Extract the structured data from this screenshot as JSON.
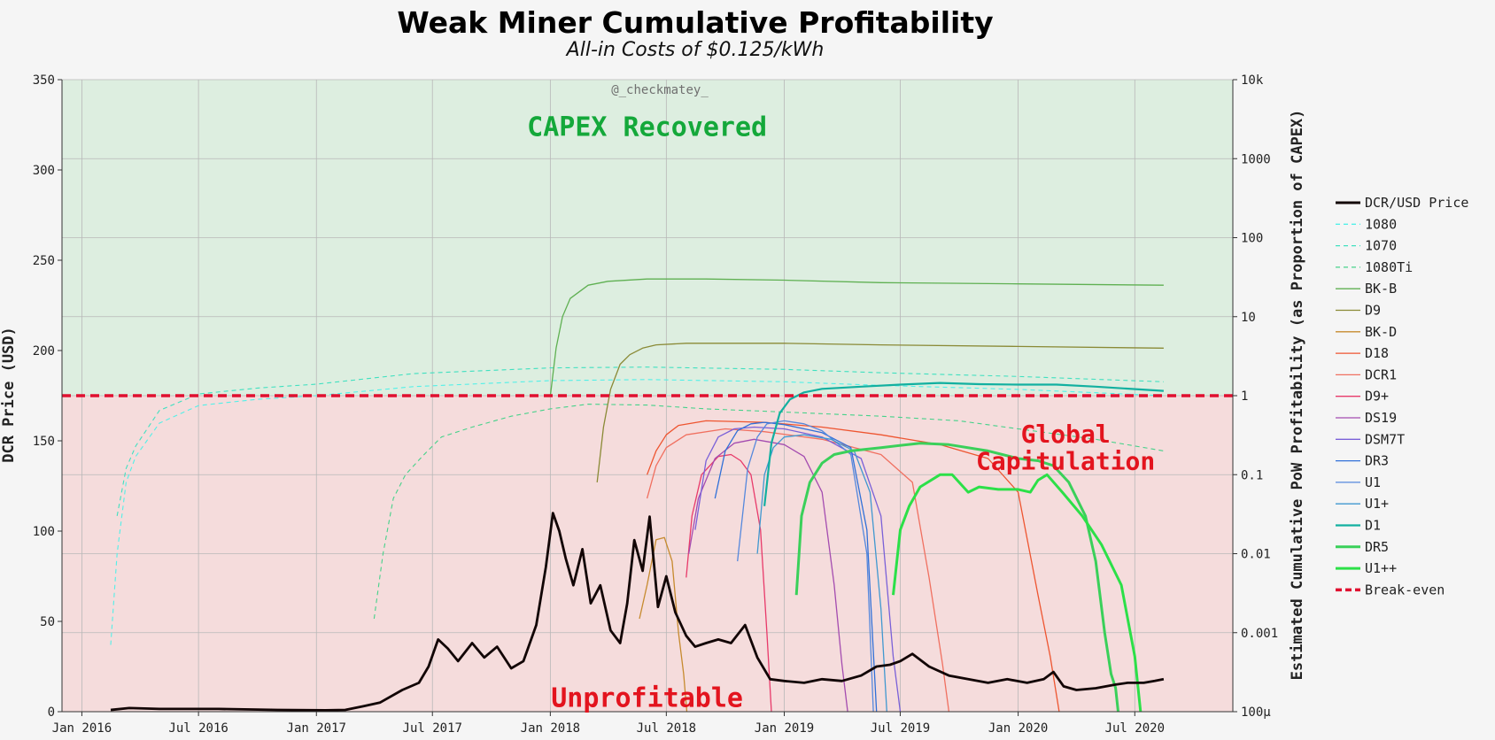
{
  "chart_data": {
    "type": "line",
    "title": "Weak Miner Cumulative Profitability",
    "subtitle": "All-in Costs of $0.125/kWh",
    "watermark": "@_checkmatey_",
    "ylabel": "DCR Price (USD)",
    "y2label": "Estimated Cumulative PoW Profitability (as Proportion of CAPEX)",
    "xlim": [
      "2015-12-01",
      "2020-12-01"
    ],
    "ylim": [
      0,
      350
    ],
    "y2lim": [
      0.0001,
      10000
    ],
    "y2scale": "log",
    "grid": true,
    "legend_position": "right",
    "x_ticks": [
      "2016-01-01",
      "2016-07-01",
      "2017-01-01",
      "2017-07-01",
      "2018-01-01",
      "2018-07-01",
      "2019-01-01",
      "2019-07-01",
      "2020-01-01",
      "2020-07-01"
    ],
    "x_tick_labels": [
      "Jan 2016",
      "Jul 2016",
      "Jan 2017",
      "Jul 2017",
      "Jan 2018",
      "Jul 2018",
      "Jan 2019",
      "Jul 2019",
      "Jan 2020",
      "Jul 2020"
    ],
    "y_ticks": [
      0,
      50,
      100,
      150,
      200,
      250,
      300,
      350
    ],
    "y_tick_labels": [
      "0",
      "50",
      "100",
      "150",
      "200",
      "250",
      "300",
      "350"
    ],
    "y2_ticks": [
      0.0001,
      0.001,
      0.01,
      0.1,
      1,
      10,
      100,
      1000,
      10000
    ],
    "y2_tick_labels": [
      "100μ",
      "0.001",
      "0.01",
      "0.1",
      "1",
      "10",
      "100",
      "1000",
      "10k"
    ],
    "regions": [
      {
        "label": "CAPEX Recovered",
        "y2_from": 1,
        "y2_to": 10000,
        "fill": "#ddeee0",
        "label_color": "#14a83a",
        "label_at": [
          "2018-06-01",
          2500
        ]
      },
      {
        "label": "Unprofitable",
        "y2_from": 0.0001,
        "y2_to": 1,
        "fill": "#f5dcdc",
        "label_color": "#e3141e",
        "label_at": [
          "2018-06-01",
          0.00015
        ]
      }
    ],
    "annotations": [
      {
        "text": "Global",
        "at": [
          "2020-03-15",
          0.33
        ],
        "color": "#e3141e"
      },
      {
        "text": "Capitulation",
        "at": [
          "2020-03-15",
          0.15
        ],
        "color": "#e3141e"
      }
    ],
    "price_series": {
      "name": "DCR/USD Price",
      "color": "#120505",
      "axis": "left",
      "x": [
        "2016-02-15",
        "2016-03-15",
        "2016-05-01",
        "2016-08-01",
        "2016-11-01",
        "2017-01-15",
        "2017-02-15",
        "2017-03-15",
        "2017-04-10",
        "2017-05-15",
        "2017-06-10",
        "2017-06-25",
        "2017-07-10",
        "2017-07-25",
        "2017-08-10",
        "2017-09-01",
        "2017-09-20",
        "2017-10-10",
        "2017-11-01",
        "2017-11-20",
        "2017-12-10",
        "2017-12-25",
        "2018-01-05",
        "2018-01-15",
        "2018-01-25",
        "2018-02-06",
        "2018-02-20",
        "2018-03-05",
        "2018-03-20",
        "2018-04-05",
        "2018-04-20",
        "2018-05-01",
        "2018-05-12",
        "2018-05-25",
        "2018-06-05",
        "2018-06-18",
        "2018-07-01",
        "2018-07-15",
        "2018-08-01",
        "2018-08-15",
        "2018-09-01",
        "2018-09-20",
        "2018-10-10",
        "2018-11-01",
        "2018-11-20",
        "2018-12-10",
        "2019-01-01",
        "2019-02-01",
        "2019-03-01",
        "2019-04-01",
        "2019-05-01",
        "2019-05-25",
        "2019-06-15",
        "2019-07-01",
        "2019-07-20",
        "2019-08-15",
        "2019-09-15",
        "2019-10-15",
        "2019-11-15",
        "2019-12-15",
        "2020-01-15",
        "2020-02-10",
        "2020-02-25",
        "2020-03-12",
        "2020-04-01",
        "2020-05-01",
        "2020-06-01",
        "2020-06-20",
        "2020-07-15",
        "2020-08-01",
        "2020-08-15"
      ],
      "values": [
        1,
        2,
        1.5,
        1.5,
        1,
        0.8,
        1,
        3,
        5,
        12,
        16,
        25,
        40,
        35,
        28,
        38,
        30,
        36,
        24,
        28,
        48,
        80,
        110,
        100,
        85,
        70,
        90,
        60,
        70,
        45,
        38,
        60,
        95,
        78,
        108,
        58,
        75,
        55,
        42,
        36,
        38,
        40,
        38,
        48,
        30,
        18,
        17,
        16,
        18,
        17,
        20,
        25,
        26,
        28,
        32,
        25,
        20,
        18,
        16,
        18,
        16,
        18,
        22,
        14,
        12,
        13,
        15,
        16,
        16,
        17,
        18
      ]
    },
    "series": [
      {
        "name": "1080",
        "color": "#52f0e8",
        "width": 1.1,
        "dash": "5,4",
        "x": [
          "2016-02-15",
          "2016-02-25",
          "2016-03-10",
          "2016-03-25",
          "2016-05-01",
          "2016-07-01",
          "2016-10-01",
          "2017-01-01",
          "2017-06-01",
          "2018-01-01",
          "2018-06-01",
          "2019-01-01",
          "2019-06-01",
          "2020-01-01",
          "2020-08-15"
        ],
        "values": [
          0.0007,
          0.01,
          0.08,
          0.17,
          0.45,
          0.75,
          0.9,
          1.0,
          1.3,
          1.55,
          1.6,
          1.5,
          1.35,
          1.2,
          1.0
        ]
      },
      {
        "name": "1070",
        "color": "#40e0c0",
        "width": 1.1,
        "dash": "5,4",
        "x": [
          "2016-02-25",
          "2016-03-10",
          "2016-03-25",
          "2016-05-01",
          "2016-07-01",
          "2016-10-01",
          "2017-01-01",
          "2017-06-01",
          "2018-01-01",
          "2018-06-01",
          "2019-01-01",
          "2019-06-01",
          "2020-01-01",
          "2020-08-15"
        ],
        "values": [
          0.03,
          0.12,
          0.23,
          0.65,
          1.05,
          1.25,
          1.4,
          1.9,
          2.25,
          2.3,
          2.15,
          1.95,
          1.75,
          1.5
        ]
      },
      {
        "name": "1080Ti",
        "color": "#46d28a",
        "width": 1.1,
        "dash": "5,4",
        "x": [
          "2017-04-01",
          "2017-04-15",
          "2017-05-01",
          "2017-05-20",
          "2017-06-15",
          "2017-07-15",
          "2017-09-01",
          "2017-11-01",
          "2018-01-01",
          "2018-03-01",
          "2018-06-01",
          "2018-09-01",
          "2019-01-01",
          "2019-06-01",
          "2019-10-01",
          "2020-01-01",
          "2020-05-01",
          "2020-08-15"
        ],
        "values": [
          0.0015,
          0.01,
          0.05,
          0.1,
          0.17,
          0.3,
          0.4,
          0.55,
          0.68,
          0.78,
          0.76,
          0.68,
          0.62,
          0.55,
          0.48,
          0.38,
          0.28,
          0.2
        ]
      },
      {
        "name": "BK-B",
        "color": "#5fb052",
        "width": 1.3,
        "dash": "",
        "x": [
          "2018-01-01",
          "2018-01-10",
          "2018-01-20",
          "2018-02-01",
          "2018-03-01",
          "2018-04-01",
          "2018-06-01",
          "2018-09-01",
          "2019-01-01",
          "2019-06-01",
          "2020-01-01",
          "2020-08-15"
        ],
        "values": [
          1.0,
          4,
          10,
          17,
          25,
          28,
          30,
          30,
          29,
          27,
          26,
          25
        ]
      },
      {
        "name": "D9",
        "color": "#8a8a36",
        "width": 1.3,
        "dash": "",
        "x": [
          "2018-03-15",
          "2018-03-25",
          "2018-04-05",
          "2018-04-20",
          "2018-05-05",
          "2018-05-25",
          "2018-06-15",
          "2018-08-01",
          "2019-01-01",
          "2019-06-01",
          "2020-01-01",
          "2020-08-15"
        ],
        "values": [
          0.08,
          0.4,
          1.2,
          2.5,
          3.3,
          4.0,
          4.4,
          4.6,
          4.6,
          4.4,
          4.2,
          4.0
        ]
      },
      {
        "name": "BK-D",
        "color": "#c68a2e",
        "width": 1.3,
        "dash": "",
        "x": [
          "2018-05-20",
          "2018-06-01",
          "2018-06-15",
          "2018-06-28",
          "2018-07-10",
          "2018-07-20",
          "2018-07-28",
          "2018-08-02"
        ],
        "values": [
          0.0015,
          0.004,
          0.015,
          0.016,
          0.008,
          0.001,
          0.0003,
          0.0001
        ]
      },
      {
        "name": "D18",
        "color": "#ee5530",
        "width": 1.3,
        "dash": "",
        "x": [
          "2018-06-01",
          "2018-06-15",
          "2018-07-01",
          "2018-07-20",
          "2018-09-01",
          "2018-12-01",
          "2019-03-01",
          "2019-06-01",
          "2019-09-01",
          "2019-11-15",
          "2020-01-01",
          "2020-02-01",
          "2020-02-20",
          "2020-03-05"
        ],
        "values": [
          0.1,
          0.2,
          0.32,
          0.42,
          0.48,
          0.46,
          0.4,
          0.32,
          0.24,
          0.16,
          0.06,
          0.003,
          0.0005,
          0.0001
        ]
      },
      {
        "name": "DCR1",
        "color": "#f07060",
        "width": 1.3,
        "dash": "",
        "x": [
          "2018-06-01",
          "2018-06-15",
          "2018-07-01",
          "2018-08-01",
          "2018-10-01",
          "2018-12-01",
          "2019-03-01",
          "2019-06-01",
          "2019-07-20",
          "2019-08-15",
          "2019-09-05",
          "2019-09-15"
        ],
        "values": [
          0.05,
          0.13,
          0.22,
          0.32,
          0.38,
          0.35,
          0.28,
          0.18,
          0.08,
          0.005,
          0.0004,
          0.0001
        ]
      },
      {
        "name": "D9+",
        "color": "#e83a6a",
        "width": 1.3,
        "dash": "",
        "x": [
          "2018-08-01",
          "2018-08-10",
          "2018-08-25",
          "2018-09-20",
          "2018-10-10",
          "2018-10-25",
          "2018-11-10",
          "2018-11-25",
          "2018-12-05",
          "2018-12-12"
        ],
        "values": [
          0.005,
          0.03,
          0.1,
          0.17,
          0.18,
          0.15,
          0.1,
          0.02,
          0.001,
          0.0001
        ]
      },
      {
        "name": "DS19",
        "color": "#a44cb0",
        "width": 1.3,
        "dash": "",
        "x": [
          "2018-08-05",
          "2018-08-20",
          "2018-09-15",
          "2018-10-15",
          "2018-11-15",
          "2019-01-01",
          "2019-02-01",
          "2019-03-01",
          "2019-03-20",
          "2019-04-01",
          "2019-04-10"
        ],
        "values": [
          0.01,
          0.05,
          0.16,
          0.25,
          0.28,
          0.24,
          0.17,
          0.06,
          0.004,
          0.0004,
          0.0001
        ]
      },
      {
        "name": "DSM7T",
        "color": "#7a60d8",
        "width": 1.3,
        "dash": "",
        "x": [
          "2018-08-15",
          "2018-09-01",
          "2018-09-20",
          "2018-10-15",
          "2018-11-15",
          "2019-01-01",
          "2019-03-01",
          "2019-05-01",
          "2019-06-01",
          "2019-06-20",
          "2019-07-01"
        ],
        "values": [
          0.02,
          0.15,
          0.3,
          0.38,
          0.4,
          0.38,
          0.3,
          0.16,
          0.03,
          0.0005,
          0.0001
        ]
      },
      {
        "name": "DR3",
        "color": "#3070d8",
        "width": 1.3,
        "dash": "",
        "x": [
          "2018-09-15",
          "2018-10-01",
          "2018-10-20",
          "2018-11-10",
          "2018-12-01",
          "2019-01-01",
          "2019-03-01",
          "2019-04-15",
          "2019-05-10",
          "2019-05-25"
        ],
        "values": [
          0.05,
          0.2,
          0.36,
          0.44,
          0.46,
          0.43,
          0.34,
          0.22,
          0.02,
          0.0001
        ]
      },
      {
        "name": "U1",
        "color": "#5588dd",
        "width": 1.3,
        "dash": "",
        "x": [
          "2018-10-20",
          "2018-11-05",
          "2018-11-20",
          "2018-12-05",
          "2019-01-01",
          "2019-02-01",
          "2019-03-01",
          "2019-04-15",
          "2019-05-10",
          "2019-05-20"
        ],
        "values": [
          0.008,
          0.12,
          0.3,
          0.44,
          0.48,
          0.44,
          0.36,
          0.18,
          0.01,
          0.0001
        ]
      },
      {
        "name": "U1+",
        "color": "#4098d0",
        "width": 1.3,
        "dash": "",
        "x": [
          "2018-11-20",
          "2018-12-01",
          "2018-12-15",
          "2019-01-01",
          "2019-02-01",
          "2019-03-15",
          "2019-04-20",
          "2019-05-15",
          "2019-06-01",
          "2019-06-10"
        ],
        "values": [
          0.01,
          0.1,
          0.22,
          0.3,
          0.32,
          0.28,
          0.2,
          0.06,
          0.002,
          0.0001
        ]
      },
      {
        "name": "D1",
        "color": "#12b0a0",
        "width": 2.2,
        "dash": "",
        "x": [
          "2018-12-01",
          "2018-12-12",
          "2018-12-25",
          "2019-01-10",
          "2019-02-01",
          "2019-03-01",
          "2019-05-01",
          "2019-07-01",
          "2019-09-01",
          "2019-11-01",
          "2020-01-01",
          "2020-03-01",
          "2020-05-01",
          "2020-08-15"
        ],
        "values": [
          0.04,
          0.25,
          0.6,
          0.9,
          1.1,
          1.22,
          1.3,
          1.38,
          1.45,
          1.4,
          1.38,
          1.38,
          1.3,
          1.15
        ]
      },
      {
        "name": "DR5",
        "color": "#3ad05a",
        "width": 3.0,
        "dash": "",
        "x": [
          "2019-01-20",
          "2019-01-28",
          "2019-02-10",
          "2019-03-01",
          "2019-03-20",
          "2019-04-15",
          "2019-06-01",
          "2019-08-01",
          "2019-09-15",
          "2019-11-15",
          "2020-01-01",
          "2020-02-01",
          "2020-02-25",
          "2020-03-20",
          "2020-04-15",
          "2020-05-01",
          "2020-05-15",
          "2020-05-25",
          "2020-06-01",
          "2020-06-05"
        ],
        "values": [
          0.003,
          0.03,
          0.08,
          0.14,
          0.18,
          0.2,
          0.22,
          0.25,
          0.24,
          0.2,
          0.16,
          0.15,
          0.13,
          0.08,
          0.03,
          0.008,
          0.001,
          0.0003,
          0.0002,
          0.0001
        ]
      },
      {
        "name": "U1++",
        "color": "#2ce048",
        "width": 3.0,
        "dash": "",
        "x": [
          "2019-06-20",
          "2019-07-01",
          "2019-07-15",
          "2019-08-01",
          "2019-09-01",
          "2019-09-20",
          "2019-10-15",
          "2019-11-01",
          "2019-12-01",
          "2020-01-01",
          "2020-01-20",
          "2020-02-01",
          "2020-02-15",
          "2020-03-10",
          "2020-04-10",
          "2020-05-10",
          "2020-06-10",
          "2020-07-01",
          "2020-07-10"
        ],
        "values": [
          0.003,
          0.02,
          0.04,
          0.07,
          0.1,
          0.1,
          0.06,
          0.07,
          0.065,
          0.065,
          0.06,
          0.085,
          0.1,
          0.06,
          0.03,
          0.013,
          0.004,
          0.0005,
          0.0001
        ]
      }
    ],
    "breakeven": {
      "name": "Break-even",
      "value": 1,
      "color": "#e01030"
    }
  }
}
